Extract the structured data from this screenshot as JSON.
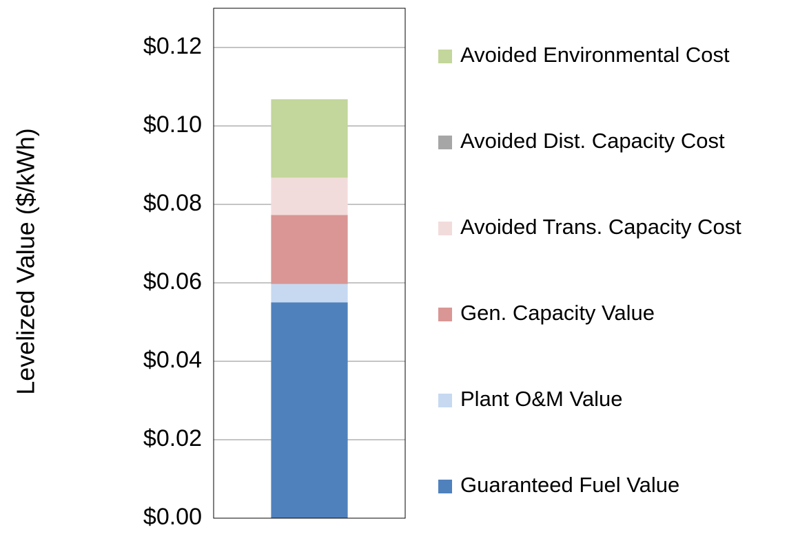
{
  "chart_data": {
    "type": "stacked_bar",
    "y_label": "Levelized Value ($/kWh)",
    "categories": [
      null
    ],
    "series": [
      {
        "name": "Guaranteed Fuel Value",
        "color": "#4f81bd",
        "values": [
          0.055
        ]
      },
      {
        "name": "Plant O&M Value",
        "color": "#c6d9f1",
        "values": [
          0.0047
        ]
      },
      {
        "name": "Gen. Capacity Value",
        "color": "#d99694",
        "values": [
          0.0176
        ]
      },
      {
        "name": "Avoided Trans. Capacity Cost",
        "color": "#f2dcdb",
        "values": [
          0.0095
        ]
      },
      {
        "name": "Avoided Dist. Capacity Cost",
        "color": "#a6a6a6",
        "values": [
          0
        ]
      },
      {
        "name": "Avoided Environmental Cost",
        "color": "#c3d69b",
        "values": [
          0.02
        ]
      }
    ],
    "ylim": [
      0,
      0.13
    ],
    "yticks": [
      {
        "value": 0,
        "label": "$0.00"
      },
      {
        "value": 0.02,
        "label": "$0.02"
      },
      {
        "value": 0.04,
        "label": "$0.04"
      },
      {
        "value": 0.06,
        "label": "$0.06"
      },
      {
        "value": 0.08,
        "label": "$0.08"
      },
      {
        "value": 0.1,
        "label": "$0.10"
      },
      {
        "value": 0.12,
        "label": "$0.12"
      }
    ],
    "grid": true,
    "legend": "right"
  }
}
